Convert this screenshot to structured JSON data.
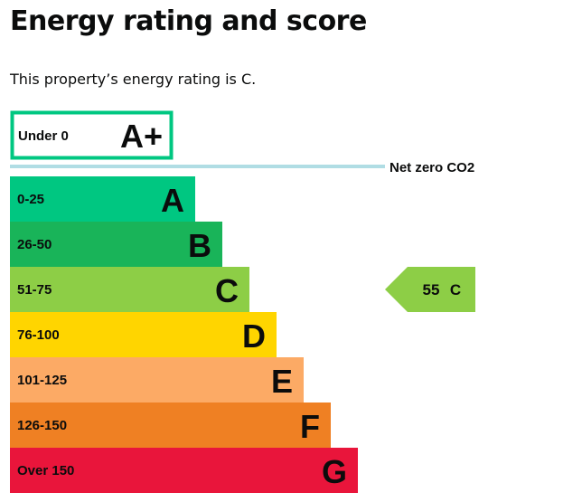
{
  "page": {
    "title": "Energy rating and score",
    "summary": "This property’s energy rating is C."
  },
  "chart_data": {
    "type": "bar",
    "categories": [
      "Under 0",
      "0-25",
      "26-50",
      "51-75",
      "76-100",
      "101-125",
      "126-150",
      "Over 150"
    ],
    "series": [
      {
        "values": [
          "A+",
          "A",
          "B",
          "C",
          "D",
          "E",
          "F",
          "G"
        ]
      }
    ],
    "colors": [
      "#ffffff",
      "#00c781",
      "#19b459",
      "#8dce46",
      "#ffd500",
      "#fcaa65",
      "#ef8023",
      "#e9153b"
    ],
    "highlight_border_color": "#00c781",
    "net_zero_label": "Net zero CO2",
    "net_zero_line_color": "#b0dde4",
    "current": {
      "score": "55",
      "rating": "C",
      "color": "#8dce46"
    }
  }
}
